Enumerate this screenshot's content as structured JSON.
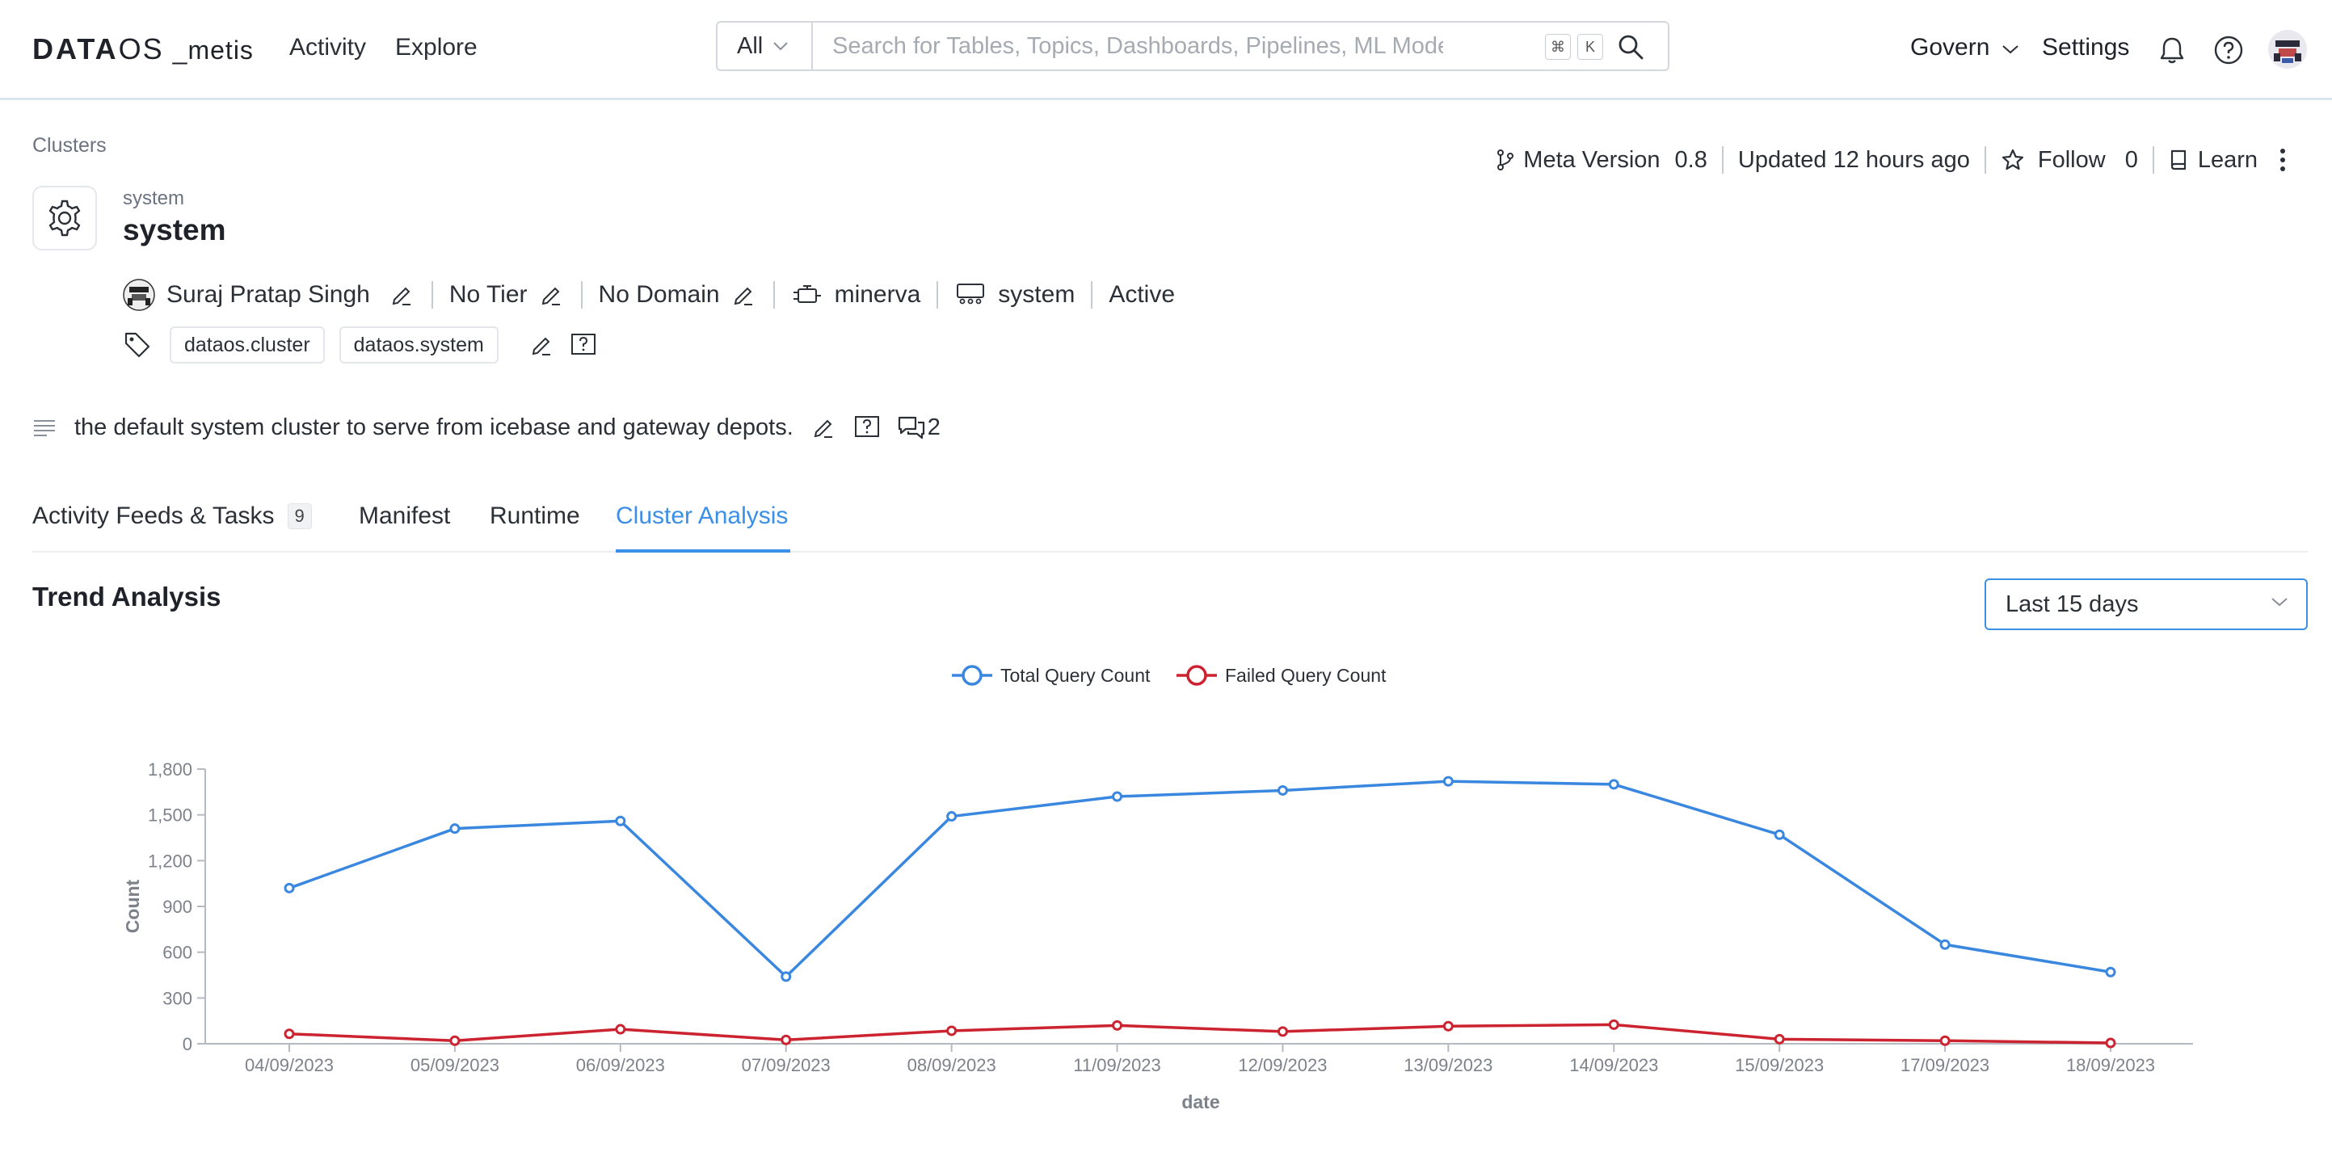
{
  "app": {
    "logo_main": "DATA",
    "logo_os": "OS",
    "logo_suffix": "_metis"
  },
  "topnav": {
    "activity": "Activity",
    "explore": "Explore",
    "search_type": "All",
    "search_placeholder": "Search for Tables, Topics, Dashboards, Pipelines, ML Models, Gl...",
    "kbd_cmd": "⌘",
    "kbd_k": "K",
    "govern": "Govern",
    "settings": "Settings"
  },
  "breadcrumb": "Clusters",
  "meta": {
    "meta_version_label": "Meta Version",
    "meta_version_value": "0.8",
    "updated": "Updated 12 hours ago",
    "follow_label": "Follow",
    "follow_count": "0",
    "learn": "Learn"
  },
  "entity": {
    "subtitle": "system",
    "title": "system",
    "owner": "Suraj Pratap Singh",
    "tier": "No Tier",
    "domain": "No Domain",
    "engine": "minerva",
    "workspace": "system",
    "status": "Active",
    "tags": [
      "dataos.cluster",
      "dataos.system"
    ],
    "description": "the default system cluster to serve from icebase and gateway depots.",
    "conversation_count": "2"
  },
  "tabs": [
    {
      "label": "Activity Feeds & Tasks",
      "badge": "9"
    },
    {
      "label": "Manifest"
    },
    {
      "label": "Runtime"
    },
    {
      "label": "Cluster Analysis",
      "active": true
    }
  ],
  "section_title": "Trend Analysis",
  "range_select": "Last 15 days",
  "colors": {
    "accent": "#3b8fe6",
    "total_series": "#3a87e0",
    "failed_series": "#cc2330"
  },
  "chart_data": {
    "type": "line",
    "x": [
      "04/09/2023",
      "05/09/2023",
      "06/09/2023",
      "07/09/2023",
      "08/09/2023",
      "11/09/2023",
      "12/09/2023",
      "13/09/2023",
      "14/09/2023",
      "15/09/2023",
      "17/09/2023",
      "18/09/2023"
    ],
    "series": [
      {
        "name": "Total Query Count",
        "values": [
          1020,
          1410,
          1460,
          440,
          1490,
          1620,
          1660,
          1720,
          1700,
          1370,
          650,
          470
        ]
      },
      {
        "name": "Failed Query Count",
        "values": [
          65,
          20,
          95,
          25,
          85,
          120,
          80,
          115,
          125,
          30,
          20,
          5
        ]
      }
    ],
    "xlabel": "date",
    "ylabel": "Count",
    "yticks": [
      "0",
      "300",
      "600",
      "900",
      "1,200",
      "1,500",
      "1,800"
    ],
    "ylim": [
      0,
      1800
    ],
    "legend": "top-center",
    "grid": false
  }
}
